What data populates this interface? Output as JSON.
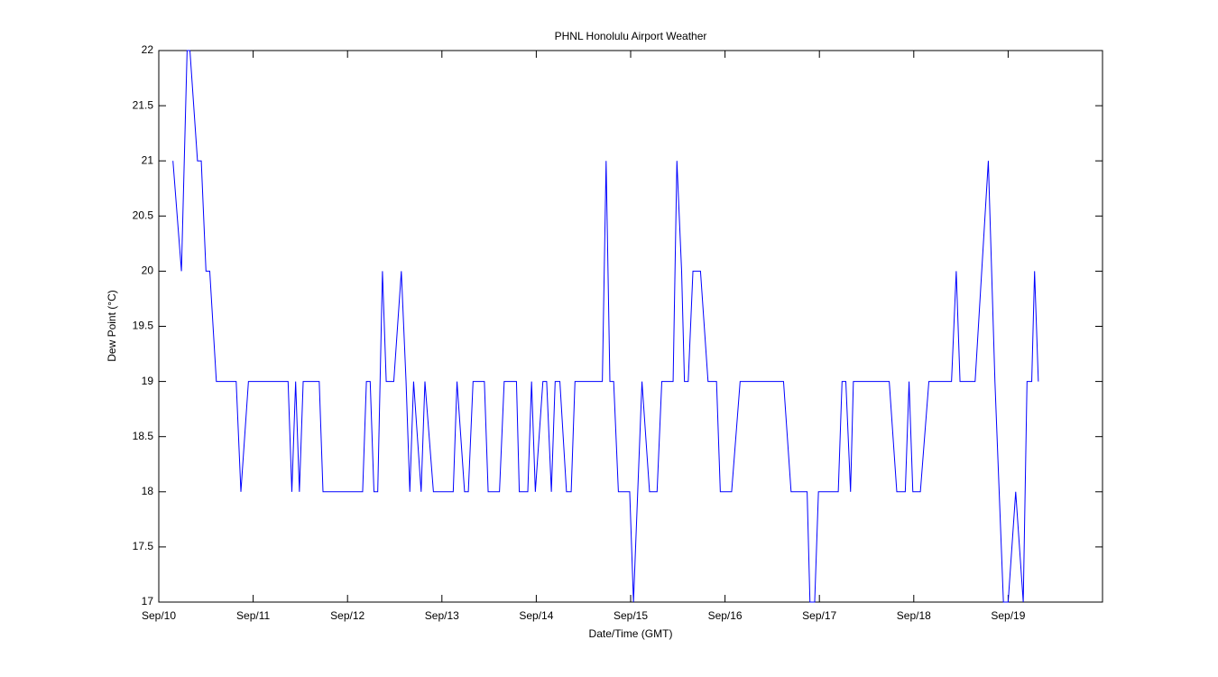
{
  "chart_data": {
    "type": "line",
    "title": "PHNL Honolulu Airport Weather",
    "x_label": "Date/Time (GMT)",
    "y_label": "Dew Point (°C)",
    "xlim": [
      0,
      10
    ],
    "xticks": [
      {
        "value": 0,
        "label": "Sep/10"
      },
      {
        "value": 1,
        "label": "Sep/11"
      },
      {
        "value": 2,
        "label": "Sep/12"
      },
      {
        "value": 3,
        "label": "Sep/13"
      },
      {
        "value": 4,
        "label": "Sep/14"
      },
      {
        "value": 5,
        "label": "Sep/15"
      },
      {
        "value": 6,
        "label": "Sep/16"
      },
      {
        "value": 7,
        "label": "Sep/17"
      },
      {
        "value": 8,
        "label": "Sep/18"
      },
      {
        "value": 9,
        "label": "Sep/19"
      }
    ],
    "ylim": [
      17,
      22
    ],
    "yticks": [
      17,
      17.5,
      18,
      18.5,
      19,
      19.5,
      20,
      20.5,
      21,
      21.5,
      22
    ],
    "x": [
      0.15,
      0.24,
      0.3,
      0.33,
      0.41,
      0.45,
      0.5,
      0.54,
      0.61,
      0.82,
      0.87,
      0.95,
      1.37,
      1.41,
      1.45,
      1.49,
      1.53,
      1.7,
      1.74,
      2.16,
      2.2,
      2.24,
      2.28,
      2.32,
      2.37,
      2.41,
      2.49,
      2.57,
      2.62,
      2.66,
      2.7,
      2.78,
      2.82,
      2.91,
      3.12,
      3.16,
      3.24,
      3.28,
      3.33,
      3.45,
      3.49,
      3.61,
      3.66,
      3.79,
      3.82,
      3.91,
      3.95,
      3.99,
      4.07,
      4.11,
      4.16,
      4.2,
      4.25,
      4.32,
      4.37,
      4.41,
      4.7,
      4.74,
      4.78,
      4.82,
      4.87,
      4.99,
      5.03,
      5.12,
      5.2,
      5.28,
      5.33,
      5.45,
      5.49,
      5.54,
      5.57,
      5.61,
      5.66,
      5.74,
      5.82,
      5.91,
      5.95,
      6.07,
      6.16,
      6.62,
      6.7,
      6.87,
      6.9,
      6.95,
      6.99,
      7.2,
      7.24,
      7.28,
      7.33,
      7.36,
      7.74,
      7.82,
      7.91,
      7.95,
      7.99,
      8.07,
      8.16,
      8.4,
      8.45,
      8.49,
      8.65,
      8.79,
      8.86,
      8.95,
      9.0,
      9.08,
      9.16,
      9.2,
      9.25,
      9.28,
      9.32
    ],
    "series": [
      {
        "name": "Dew Point",
        "color": "#0000ff",
        "values": [
          21,
          20,
          22,
          22,
          21,
          21,
          20,
          20,
          19,
          19,
          18,
          19,
          19,
          18,
          19,
          18,
          19,
          19,
          18,
          18,
          19,
          19,
          18,
          18,
          20,
          19,
          19,
          20,
          19,
          18,
          19,
          18,
          19,
          18,
          18,
          19,
          18,
          18,
          19,
          19,
          18,
          18,
          19,
          19,
          18,
          18,
          19,
          18,
          19,
          19,
          18,
          19,
          19,
          18,
          18,
          19,
          19,
          21,
          19,
          19,
          18,
          18,
          17,
          19,
          18,
          18,
          19,
          19,
          21,
          20,
          19,
          19,
          20,
          20,
          19,
          19,
          18,
          18,
          19,
          19,
          18,
          18,
          17,
          17,
          18,
          18,
          19,
          19,
          18,
          19,
          19,
          18,
          18,
          19,
          18,
          18,
          19,
          19,
          20,
          19,
          19,
          21,
          19,
          17,
          17,
          18,
          17,
          19,
          19,
          20,
          19
        ]
      }
    ]
  }
}
